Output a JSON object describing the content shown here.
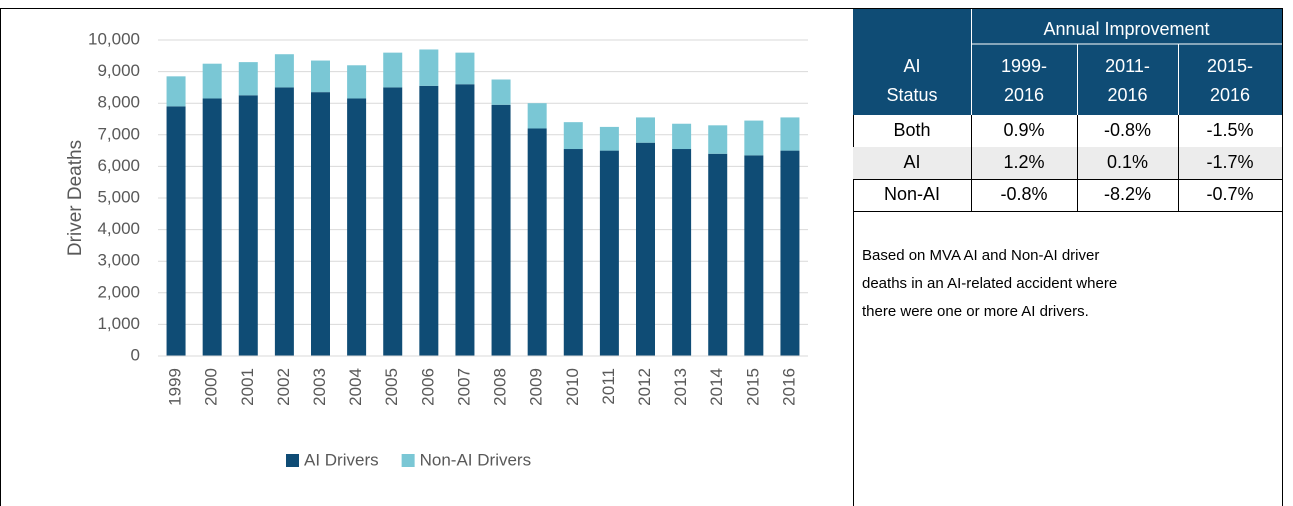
{
  "chart_data": {
    "type": "stacked-bar",
    "y_label": "Driver Deaths",
    "categories": [
      "1999",
      "2000",
      "2001",
      "2002",
      "2003",
      "2004",
      "2005",
      "2006",
      "2007",
      "2008",
      "2009",
      "2010",
      "2011",
      "2012",
      "2013",
      "2014",
      "2015",
      "2016"
    ],
    "series": [
      {
        "name": "AI Drivers",
        "color": "#0f4c75",
        "values": [
          7900,
          8150,
          8250,
          8500,
          8350,
          8150,
          8500,
          8550,
          8600,
          7950,
          7200,
          6550,
          6500,
          6750,
          6550,
          6400,
          6350,
          6500
        ]
      },
      {
        "name": "Non-AI Drivers",
        "color": "#7ac7d5",
        "values": [
          950,
          1100,
          1050,
          1050,
          1000,
          1050,
          1100,
          1150,
          1000,
          800,
          800,
          850,
          750,
          800,
          800,
          900,
          1100,
          1050
        ]
      }
    ],
    "ylim": [
      0,
      10000
    ],
    "yticks": [
      0,
      {
        "value": 1000,
        "label": "1,000"
      },
      {
        "value": 2000,
        "label": "2,000"
      },
      {
        "value": 3000,
        "label": "3,000"
      },
      {
        "value": 4000,
        "label": "4,000"
      },
      {
        "value": 5000,
        "label": "5,000"
      },
      {
        "value": 6000,
        "label": "6,000"
      },
      {
        "value": 7000,
        "label": "7,000"
      },
      {
        "value": 8000,
        "label": "8,000"
      },
      {
        "value": 9000,
        "label": "9,000"
      },
      {
        "value": 10000,
        "label": "10,000"
      }
    ],
    "grid": true,
    "legend": "bottom"
  },
  "table": {
    "title": "Annual Improvement",
    "headers": [
      [
        "AI",
        "Status"
      ],
      [
        "1999-",
        "2016"
      ],
      [
        "2011-",
        "2016"
      ],
      [
        "2015-",
        "2016"
      ]
    ],
    "rows": [
      [
        "Both",
        "0.9%",
        "-0.8%",
        "-1.5%"
      ],
      [
        "AI",
        "1.2%",
        "0.1%",
        "-1.7%"
      ],
      [
        "Non-AI",
        "-0.8%",
        "-8.2%",
        "-0.7%"
      ]
    ]
  },
  "note": [
    "Based on MVA AI and Non-AI driver",
    "deaths in an AI-related accident where",
    "there were one or more AI drivers."
  ]
}
